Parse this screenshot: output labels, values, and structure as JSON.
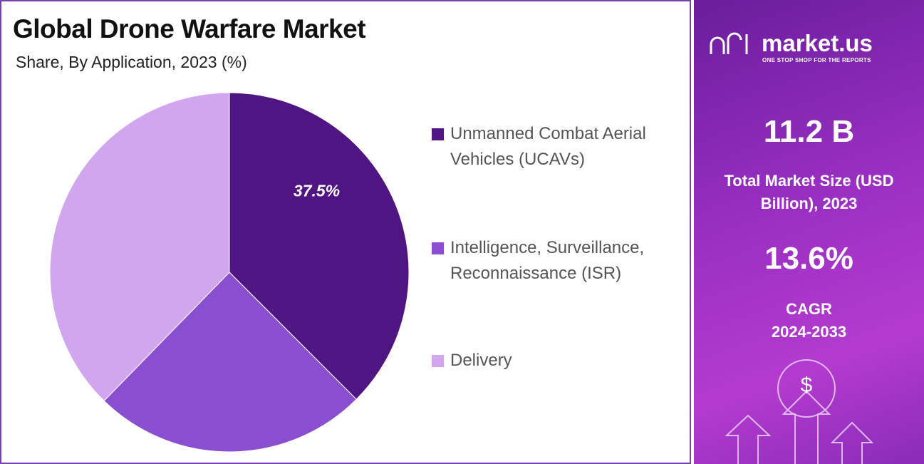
{
  "chart_data": {
    "type": "pie",
    "title": "Global Drone Warfare Market",
    "subtitle": "Share, By Application, 2023 (%)",
    "categories": [
      "Unmanned Combat Aerial Vehicles (UCAVs)",
      "Intelligence, Surveillance, Reconnaissance (ISR)",
      "Delivery"
    ],
    "values": [
      37.5,
      24.8,
      37.7
    ],
    "value_labels": [
      "37.5%",
      null,
      null
    ],
    "colors": [
      "#4f1582",
      "#8a4fd0",
      "#d2a6ee"
    ]
  },
  "panel": {
    "brand": "market.us",
    "tagline": "ONE STOP SHOP FOR THE REPORTS",
    "market_size": "11.2 B",
    "market_size_label": "Total Market Size (USD Billion), 2023",
    "cagr": "13.6%",
    "cagr_label": "CAGR",
    "cagr_period": "2024-2033"
  }
}
